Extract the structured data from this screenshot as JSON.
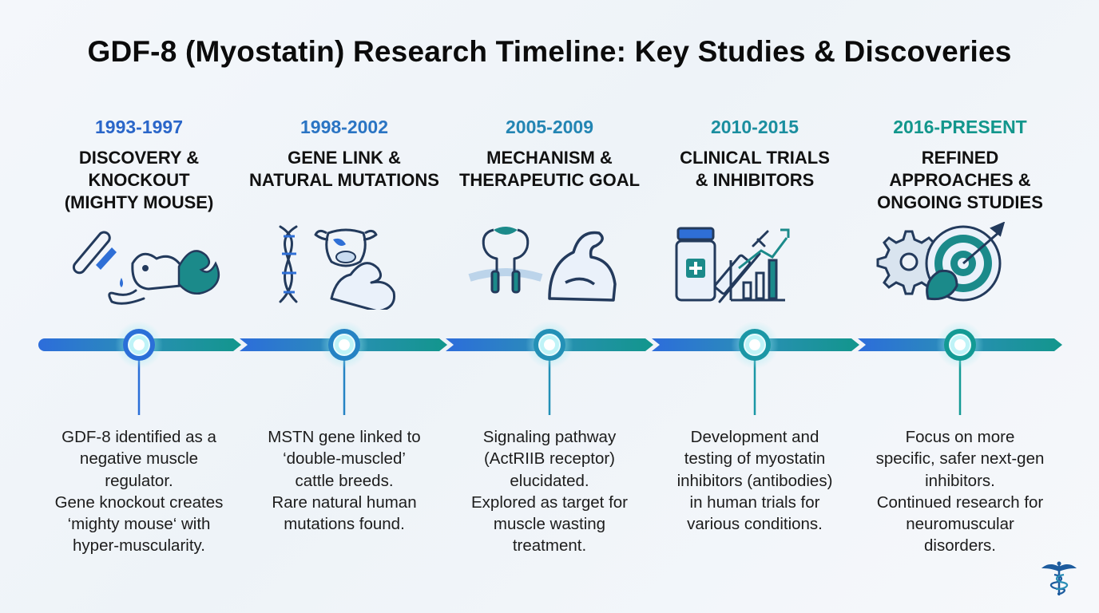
{
  "title": "GDF-8 (Myostatin) Research Timeline: Key Studies & Discoveries",
  "colors": {
    "blue": "#2f6fd6",
    "teal": "#13918f",
    "icon_dark": "#233a5c",
    "icon_teal": "#1b8a8a"
  },
  "milestones": [
    {
      "year": "1993-1997",
      "heading": "DISCOVERY &\nKNOCKOUT\n(MIGHTY MOUSE)",
      "icon": "test-tube-mouse-muscle-icon",
      "desc": [
        "GDF-8 identified as a",
        "negative muscle",
        "regulator.",
        "Gene knockout creates",
        "‘mighty mouse‘ with",
        "hyper-muscularity."
      ]
    },
    {
      "year": "1998-2002",
      "heading": "GENE LINK &\nNATURAL MUTATIONS",
      "icon": "dna-cow-muscle-icon",
      "desc": [
        "MSTN gene linked to",
        "‘double-muscled’",
        "cattle breeds.",
        "Rare natural human",
        "mutations found."
      ]
    },
    {
      "year": "2005-2009",
      "heading": "MECHANISM &\nTHERAPEUTIC GOAL",
      "icon": "receptor-muscle-icon",
      "desc": [
        "Signaling pathway",
        "(ActRIIB receptor)",
        "elucidated.",
        "Explored as target for",
        "muscle wasting",
        "treatment."
      ]
    },
    {
      "year": "2010-2015",
      "heading": "CLINICAL TRIALS\n& INHIBITORS",
      "icon": "pill-bottle-syringe-chart-icon",
      "desc": [
        "Development and",
        "testing of myostatin",
        "inhibitors (antibodies)",
        "in human trials for",
        "various conditions."
      ]
    },
    {
      "year": "2016-PRESENT",
      "heading": "REFINED\nAPPROACHES &\nONGOING STUDIES",
      "icon": "gear-target-icon",
      "desc": [
        "Focus on more",
        "specific, safer next-gen",
        "inhibitors.",
        "Continued research for",
        "neuromuscular",
        "disorders."
      ]
    }
  ]
}
